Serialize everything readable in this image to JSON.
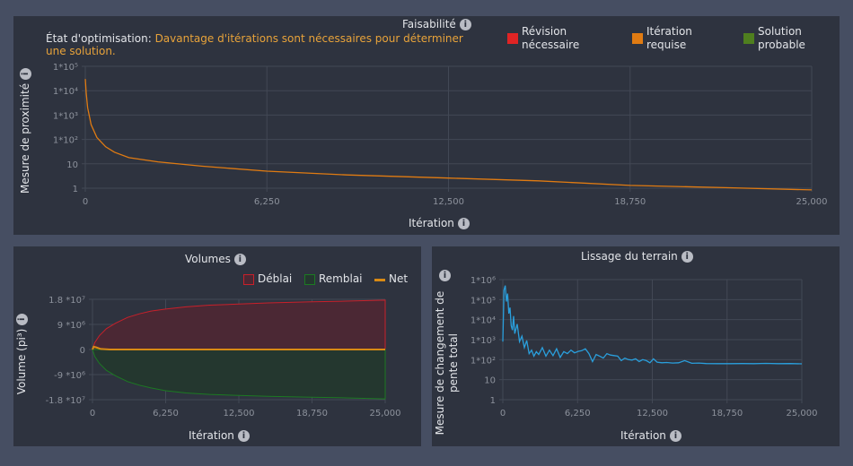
{
  "top": {
    "status_label": "État d'optimisation:",
    "status_text": "Davantage d'itérations sont nécessaires pour déterminer une solution.",
    "status_color": "#e8a33a",
    "feasibility_title": "Faisabilité",
    "legend": [
      {
        "label": "Révision nécessaire",
        "color": "#e02424"
      },
      {
        "label": "Itération requise",
        "color": "#e07b12"
      },
      {
        "label": "Solution probable",
        "color": "#4f7f1f"
      }
    ]
  },
  "chart_data": [
    {
      "type": "line",
      "title": "",
      "ylabel": "Mesure de proximité",
      "xlabel": "Itération",
      "yscale": "log",
      "xlim": [
        0,
        25000
      ],
      "ylim": [
        1,
        100000
      ],
      "grid": true,
      "xticks": [
        "0",
        "6,250",
        "12,500",
        "18,750",
        "25,000"
      ],
      "yticks": [
        "1",
        "10",
        "1*10²",
        "1*10³",
        "1*10⁴",
        "1*10⁵"
      ],
      "series": [
        {
          "color": "#e07b12",
          "x": [
            0,
            30,
            80,
            200,
            400,
            700,
            1000,
            1500,
            2500,
            4000,
            6250,
            9000,
            12500,
            15600,
            18750,
            22000,
            25000
          ],
          "y": [
            30000,
            8000,
            2000,
            400,
            120,
            50,
            30,
            18,
            12,
            8,
            5,
            3.5,
            2.6,
            2,
            1.3,
            1.05,
            0.85
          ]
        }
      ]
    },
    {
      "type": "area",
      "title": "Volumes",
      "ylabel": "Volume (pi³)",
      "xlabel": "Itération",
      "xlim": [
        0,
        25000
      ],
      "ylim": [
        -18000000,
        18000000
      ],
      "grid": true,
      "xticks": [
        "0",
        "6,250",
        "12,500",
        "18,750",
        "25,000"
      ],
      "yticks": [
        "-1.8 *10⁷",
        "-9 *10⁶",
        "0",
        "9 *10⁶",
        "1.8 *10⁷"
      ],
      "legend": "top-right",
      "series": [
        {
          "name": "Déblai",
          "color": "#c8202a",
          "fill": "#4b2834",
          "x": [
            0,
            200,
            600,
            1200,
            2000,
            3000,
            4000,
            5000,
            6250,
            8000,
            10000,
            12500,
            15000,
            18750,
            22000,
            25000
          ],
          "y": [
            0,
            2500000,
            5000000,
            7500000,
            9500000,
            11500000,
            12800000,
            13800000,
            14500000,
            15300000,
            15900000,
            16300000,
            16700000,
            17100000,
            17400000,
            17700000
          ]
        },
        {
          "name": "Remblai",
          "color": "#1c7a22",
          "fill": "#24372f",
          "x": [
            0,
            200,
            600,
            1200,
            2000,
            3000,
            4000,
            5000,
            6250,
            8000,
            10000,
            12500,
            15000,
            18750,
            22000,
            25000
          ],
          "y": [
            0,
            -2500000,
            -5000000,
            -7500000,
            -9500000,
            -11500000,
            -12800000,
            -13800000,
            -14800000,
            -15600000,
            -16100000,
            -16500000,
            -16800000,
            -17100000,
            -17400000,
            -17700000
          ]
        },
        {
          "name": "Net",
          "color": "#d98a14",
          "x": [
            0,
            100,
            300,
            700,
            1500,
            25000
          ],
          "y": [
            0,
            1000000,
            800000,
            200000,
            0,
            0
          ]
        }
      ]
    },
    {
      "type": "line",
      "title": "Lissage du terrain",
      "ylabel": "Mesure de changement de pente total",
      "xlabel": "Itération",
      "yscale": "log",
      "xlim": [
        0,
        25000
      ],
      "ylim": [
        1,
        1000000
      ],
      "grid": true,
      "xticks": [
        "0",
        "6,250",
        "12,500",
        "18,750",
        "25,000"
      ],
      "yticks": [
        "1",
        "10",
        "1*10²",
        "1*10³",
        "1*10⁴",
        "1*10⁵",
        "1*10⁶"
      ],
      "series": [
        {
          "color": "#2a9fdc",
          "x": [
            0,
            100,
            200,
            300,
            400,
            500,
            600,
            700,
            800,
            900,
            1000,
            1200,
            1400,
            1600,
            1800,
            2000,
            2200,
            2400,
            2600,
            2800,
            3000,
            3300,
            3600,
            3900,
            4200,
            4500,
            4800,
            5100,
            5400,
            5700,
            6000,
            6300,
            6600,
            6900,
            7200,
            7500,
            7800,
            8100,
            8400,
            8700,
            9000,
            9300,
            9600,
            9900,
            10200,
            10500,
            10800,
            11100,
            11400,
            11700,
            12000,
            12300,
            12600,
            12900,
            13300,
            13700,
            14200,
            14700,
            15200,
            15800,
            16400,
            17000,
            18000,
            19000,
            20000,
            21000,
            22000,
            23000,
            24000,
            25000
          ],
          "y": [
            800,
            300000,
            500000,
            80000,
            200000,
            20000,
            40000,
            5000,
            3000,
            15000,
            2000,
            6000,
            800,
            1500,
            400,
            900,
            200,
            300,
            150,
            250,
            180,
            400,
            150,
            300,
            160,
            350,
            130,
            250,
            200,
            300,
            220,
            260,
            280,
            350,
            200,
            80,
            180,
            150,
            120,
            200,
            170,
            160,
            150,
            90,
            120,
            100,
            95,
            110,
            80,
            100,
            90,
            70,
            110,
            75,
            70,
            72,
            68,
            70,
            90,
            66,
            68,
            64,
            63,
            63,
            64,
            63,
            65,
            63,
            64,
            62
          ]
        }
      ]
    }
  ],
  "xlabel_common": "Itération"
}
